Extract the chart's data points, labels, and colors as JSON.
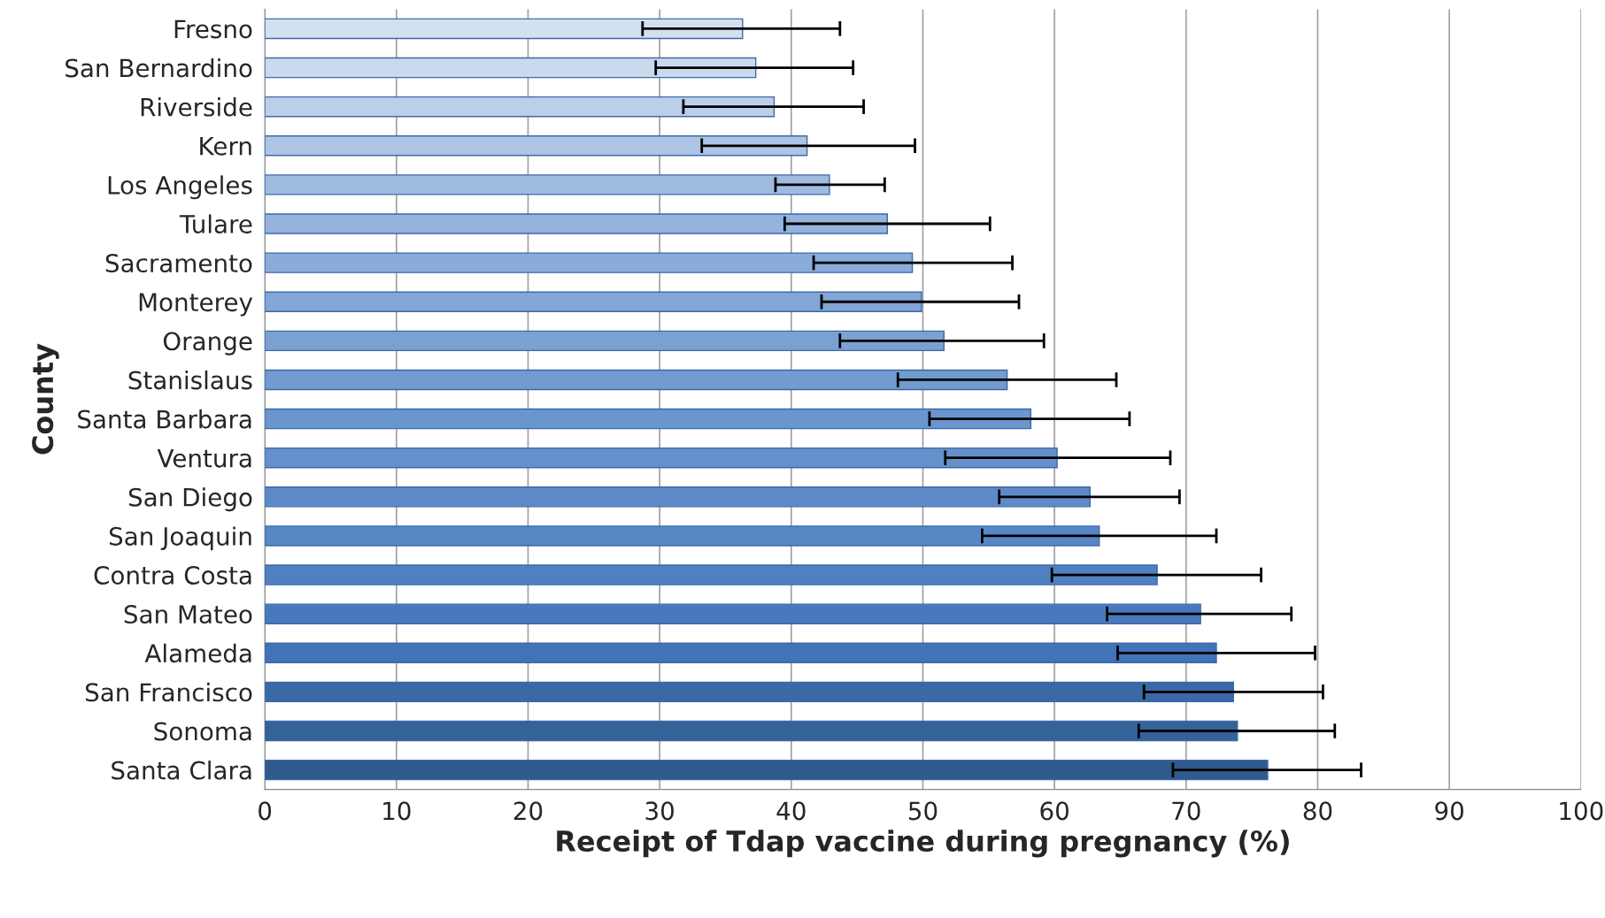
{
  "chart_data": {
    "type": "bar",
    "orientation": "horizontal",
    "xlabel": "Receipt of Tdap vaccine during pregnancy (%)",
    "ylabel": "County",
    "categories": [
      "Fresno",
      "San Bernardino",
      "Riverside",
      "Kern",
      "Los Angeles",
      "Tulare",
      "Sacramento",
      "Monterey",
      "Orange",
      "Stanislaus",
      "Santa Barbara",
      "Ventura",
      "San Diego",
      "San Joaquin",
      "Contra Costa",
      "San Mateo",
      "Alameda",
      "San Francisco",
      "Sonoma",
      "Santa Clara"
    ],
    "values": [
      36.3,
      37.3,
      38.7,
      41.2,
      42.9,
      47.3,
      49.2,
      49.9,
      51.6,
      56.4,
      58.2,
      60.2,
      62.7,
      63.4,
      67.8,
      71.1,
      72.3,
      73.6,
      73.9,
      76.2
    ],
    "errors": [
      [
        28.7,
        43.7
      ],
      [
        29.7,
        44.7
      ],
      [
        31.8,
        45.5
      ],
      [
        33.2,
        49.4
      ],
      [
        38.8,
        47.1
      ],
      [
        39.5,
        55.1
      ],
      [
        41.7,
        56.8
      ],
      [
        42.3,
        57.3
      ],
      [
        43.7,
        59.2
      ],
      [
        48.1,
        64.7
      ],
      [
        50.5,
        65.7
      ],
      [
        51.7,
        68.8
      ],
      [
        55.8,
        69.5
      ],
      [
        54.5,
        72.3
      ],
      [
        59.8,
        75.7
      ],
      [
        64.0,
        78.0
      ],
      [
        64.8,
        79.8
      ],
      [
        66.8,
        80.4
      ],
      [
        66.4,
        81.3
      ],
      [
        69.0,
        83.3
      ]
    ],
    "colors": [
      "#d3e0f1",
      "#c9daee",
      "#bccfe8",
      "#adc4e4",
      "#9fbbe0",
      "#95b3dc",
      "#8aacd8",
      "#82a6d5",
      "#7ba1d2",
      "#729bcf",
      "#6a96cd",
      "#6590cb",
      "#5e8bc8",
      "#5887c6",
      "#4f80c2",
      "#4879bd",
      "#4273b7",
      "#3b69a6",
      "#36629a",
      "#30598c"
    ],
    "xlim": [
      0,
      100
    ],
    "xticks": [
      0,
      10,
      20,
      30,
      40,
      50,
      60,
      70,
      80,
      90,
      100
    ],
    "grid": "x"
  }
}
